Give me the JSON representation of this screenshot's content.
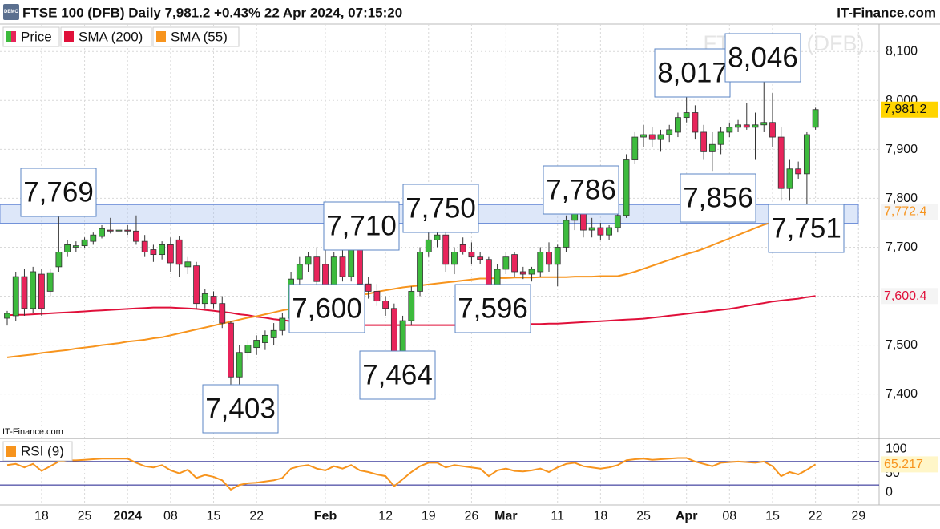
{
  "chart_data": {
    "type": "candlestick",
    "title": "FTSE 100 (DFB) Daily 7,981.2 +0.43% 22 Apr 2024, 07:15:20",
    "source": "IT-Finance.com",
    "credit": "IT-Finance.com",
    "badge": "DEMO",
    "watermark": "FTSE 100 (DFB)",
    "categories": [
      null,
      null,
      null,
      null,
      "18",
      null,
      null,
      null,
      null,
      "25",
      null,
      null,
      null,
      null,
      "2024",
      null,
      null,
      null,
      null,
      "08",
      null,
      null,
      null,
      null,
      "15",
      null,
      null,
      null,
      null,
      "22",
      null,
      null,
      null,
      null,
      null,
      null,
      null,
      "Feb",
      null,
      null,
      null,
      null,
      null,
      null,
      "12",
      null,
      null,
      null,
      null,
      "19",
      null,
      null,
      null,
      null,
      "26",
      null,
      null,
      null,
      "Mar",
      null,
      null,
      null,
      null,
      null,
      "11",
      null,
      null,
      null,
      null,
      "18",
      null,
      null,
      null,
      null,
      "25",
      null,
      null,
      null,
      null,
      "Apr",
      null,
      null,
      null,
      null,
      "08",
      null,
      null,
      null,
      null,
      "15",
      null,
      null,
      null,
      null,
      "22",
      null,
      null,
      null,
      null,
      "29"
    ],
    "ylim": [
      7311,
      8156
    ],
    "yticks": [
      {
        "value": 7400,
        "label": "7,400"
      },
      {
        "value": 7500,
        "label": "7,500"
      },
      {
        "value": 7600,
        "label": "7,600"
      },
      {
        "value": 7700,
        "label": "7,700"
      },
      {
        "value": 7800,
        "label": "7,800"
      },
      {
        "value": 7900,
        "label": "7,900"
      },
      {
        "value": 8000,
        "label": "8,000"
      },
      {
        "value": 8100,
        "label": "8,100"
      }
    ],
    "grid": true,
    "highlight_band": [
      7749,
      7787
    ],
    "series": [
      {
        "name": "Price",
        "up_color": "#3dbb3d",
        "down_color": "#e8245b",
        "tag_color": "#ffd400",
        "last_label": "7,981.2",
        "open": [
          7555,
          7560,
          7640,
          7575,
          7645,
          7610,
          7660,
          7690,
          7700,
          7703,
          7712,
          7722,
          7735,
          7733,
          7735,
          7733,
          7712,
          7695,
          7685,
          7705,
          7715,
          7660,
          7662,
          7585,
          7600,
          7585,
          7545,
          7435,
          7485,
          7495,
          7505,
          7515,
          7530,
          7555,
          7635,
          7665,
          7680,
          7665,
          7615,
          7680,
          7640,
          7700,
          7625,
          7610,
          7590,
          7575,
          7480,
          7550,
          7610,
          7690,
          7715,
          7725,
          7665,
          7705,
          7690,
          7680,
          7675,
          7610,
          7655,
          7685,
          7650,
          7645,
          7650,
          7690,
          7665,
          7700,
          7755,
          7775,
          7735,
          7740,
          7725,
          7740,
          7765,
          7880,
          7925,
          7930,
          7920,
          7930,
          7935,
          7965,
          7975,
          7935,
          7895,
          7910,
          7935,
          7945,
          7950,
          7945,
          7950,
          7955,
          7925,
          7820,
          7860,
          7850,
          7945,
          null,
          null,
          null,
          null,
          null
        ],
        "high": [
          7570,
          7650,
          7655,
          7660,
          7655,
          7655,
          7769,
          7715,
          7712,
          7720,
          7730,
          7745,
          7760,
          7745,
          7745,
          7765,
          7725,
          7705,
          7712,
          7720,
          7722,
          7680,
          7670,
          7615,
          7610,
          7600,
          7550,
          7500,
          7510,
          7520,
          7530,
          7545,
          7565,
          7650,
          7680,
          7690,
          7700,
          7695,
          7690,
          7700,
          7710,
          7705,
          7640,
          7625,
          7600,
          7585,
          7560,
          7620,
          7700,
          7750,
          7740,
          7735,
          7700,
          7720,
          7710,
          7690,
          7680,
          7665,
          7690,
          7690,
          7660,
          7660,
          7700,
          7710,
          7705,
          7765,
          7780,
          7786,
          7760,
          7750,
          7745,
          7775,
          7890,
          7935,
          7950,
          7945,
          7940,
          7950,
          7975,
          8017,
          7990,
          7950,
          7935,
          7945,
          7955,
          7960,
          7995,
          7975,
          8046,
          8015,
          7945,
          7880,
          7875,
          7935,
          7985,
          null,
          null,
          null,
          null,
          null
        ],
        "low": [
          7540,
          7550,
          7560,
          7565,
          7560,
          7600,
          7650,
          7680,
          7690,
          7698,
          7705,
          7718,
          7728,
          7725,
          7725,
          7705,
          7680,
          7670,
          7675,
          7650,
          7640,
          7645,
          7575,
          7575,
          7575,
          7535,
          7403,
          7420,
          7470,
          7480,
          7490,
          7500,
          7520,
          7545,
          7610,
          7650,
          7620,
          7600,
          7605,
          7630,
          7630,
          7610,
          7595,
          7580,
          7560,
          7464,
          7470,
          7540,
          7600,
          7680,
          7700,
          7650,
          7645,
          7685,
          7665,
          7665,
          7596,
          7600,
          7645,
          7640,
          7635,
          7630,
          7640,
          7650,
          7620,
          7690,
          7735,
          7720,
          7720,
          7715,
          7715,
          7730,
          7760,
          7870,
          7905,
          7905,
          7895,
          7915,
          7925,
          7955,
          7920,
          7880,
          7856,
          7890,
          7925,
          7935,
          7940,
          7880,
          7935,
          7905,
          7795,
          7795,
          7840,
          7751,
          7940,
          null,
          null,
          null,
          null,
          null
        ],
        "close": [
          7565,
          7640,
          7575,
          7650,
          7575,
          7648,
          7690,
          7705,
          7703,
          7715,
          7725,
          7738,
          7733,
          7735,
          7733,
          7712,
          7690,
          7685,
          7705,
          7668,
          7665,
          7670,
          7585,
          7605,
          7585,
          7545,
          7435,
          7485,
          7500,
          7510,
          7520,
          7530,
          7555,
          7635,
          7665,
          7680,
          7630,
          7615,
          7680,
          7640,
          7700,
          7625,
          7610,
          7590,
          7575,
          7480,
          7550,
          7610,
          7690,
          7715,
          7725,
          7665,
          7690,
          7690,
          7680,
          7675,
          7610,
          7655,
          7680,
          7650,
          7645,
          7655,
          7690,
          7665,
          7700,
          7755,
          7775,
          7735,
          7740,
          7725,
          7740,
          7765,
          7880,
          7925,
          7930,
          7920,
          7930,
          7940,
          7965,
          7975,
          7935,
          7895,
          7910,
          7935,
          7945,
          7950,
          7945,
          7950,
          7955,
          7925,
          7820,
          7860,
          7850,
          7930,
          7981.2,
          null,
          null,
          null,
          null,
          null
        ]
      },
      {
        "name": "SMA (200)",
        "color": "#e0103a",
        "last_label": "7,600.4",
        "values": [
          7561,
          7562,
          7562,
          7563,
          7564,
          7565,
          7566,
          7567,
          7568,
          7569,
          7570,
          7571,
          7572,
          7573,
          7574,
          7575,
          7576,
          7577,
          7577,
          7577,
          7576,
          7575,
          7574,
          7572,
          7570,
          7568,
          7566,
          7563,
          7561,
          7558,
          7556,
          7553,
          7551,
          7549,
          7547,
          7546,
          7545,
          7544,
          7543,
          7542,
          7541,
          7541,
          7541,
          7541,
          7541,
          7541,
          7541,
          7541,
          7541,
          7541,
          7541,
          7541,
          7541,
          7541,
          7541,
          7541,
          7541,
          7541,
          7541,
          7542,
          7542,
          7543,
          7543,
          7544,
          7544,
          7545,
          7546,
          7547,
          7548,
          7549,
          7550,
          7551,
          7552,
          7553,
          7554,
          7556,
          7558,
          7560,
          7562,
          7564,
          7566,
          7568,
          7570,
          7572,
          7574,
          7577,
          7580,
          7583,
          7586,
          7589,
          7591,
          7593,
          7595,
          7598,
          7600.4,
          null,
          null,
          null,
          null,
          null
        ]
      },
      {
        "name": "SMA (55)",
        "color": "#f7941d",
        "last_label": "7,772.4",
        "values": [
          7475,
          7477,
          7479,
          7481,
          7484,
          7486,
          7488,
          7490,
          7493,
          7495,
          7497,
          7500,
          7502,
          7504,
          7507,
          7509,
          7511,
          7514,
          7516,
          7520,
          7524,
          7528,
          7532,
          7536,
          7540,
          7544,
          7548,
          7552,
          7556,
          7559,
          7563,
          7567,
          7571,
          7574,
          7578,
          7581,
          7585,
          7589,
          7592,
          7595,
          7599,
          7602,
          7605,
          7609,
          7612,
          7615,
          7618,
          7620,
          7622,
          7624,
          7626,
          7628,
          7630,
          7632,
          7634,
          7636,
          7636,
          7637,
          7637,
          7638,
          7638,
          7638,
          7639,
          7639,
          7639,
          7639,
          7640,
          7640,
          7640,
          7641,
          7641,
          7641,
          7645,
          7650,
          7656,
          7662,
          7668,
          7674,
          7680,
          7686,
          7691,
          7697,
          7704,
          7711,
          7718,
          7725,
          7732,
          7739,
          7746,
          7751,
          7756,
          7760,
          7764,
          7768,
          7772.4,
          null,
          null,
          null,
          null,
          null
        ]
      }
    ],
    "annotations": [
      "7,769",
      "7,403",
      "7,600",
      "7,710",
      "7,750",
      "7,464",
      "7,596",
      "7,786",
      "8,017",
      "8,046",
      "7,856",
      "7,751"
    ],
    "rsi": {
      "name": "RSI (9)",
      "color": "#f7941d",
      "tag_color": "#fff6c8",
      "last_label": "65.217",
      "ylim": [
        0,
        100
      ],
      "yticks": [
        100,
        50,
        0
      ],
      "levels": [
        70,
        30
      ],
      "level_color": "#1a1a8c",
      "values": [
        64,
        66,
        60,
        66,
        54,
        62,
        70,
        72,
        72,
        73,
        74,
        75,
        75,
        75,
        75,
        68,
        62,
        60,
        64,
        55,
        50,
        56,
        42,
        47,
        44,
        38,
        22,
        30,
        33,
        34,
        36,
        38,
        42,
        58,
        62,
        64,
        58,
        55,
        62,
        58,
        64,
        55,
        52,
        48,
        45,
        28,
        40,
        52,
        62,
        68,
        68,
        60,
        64,
        62,
        60,
        58,
        45,
        55,
        58,
        54,
        53,
        55,
        58,
        52,
        60,
        66,
        68,
        62,
        60,
        58,
        60,
        64,
        72,
        74,
        75,
        73,
        74,
        75,
        76,
        76,
        70,
        66,
        62,
        68,
        69,
        70,
        69,
        68,
        70,
        62,
        45,
        52,
        48,
        56,
        65.217,
        null,
        null,
        null,
        null,
        null
      ]
    }
  }
}
